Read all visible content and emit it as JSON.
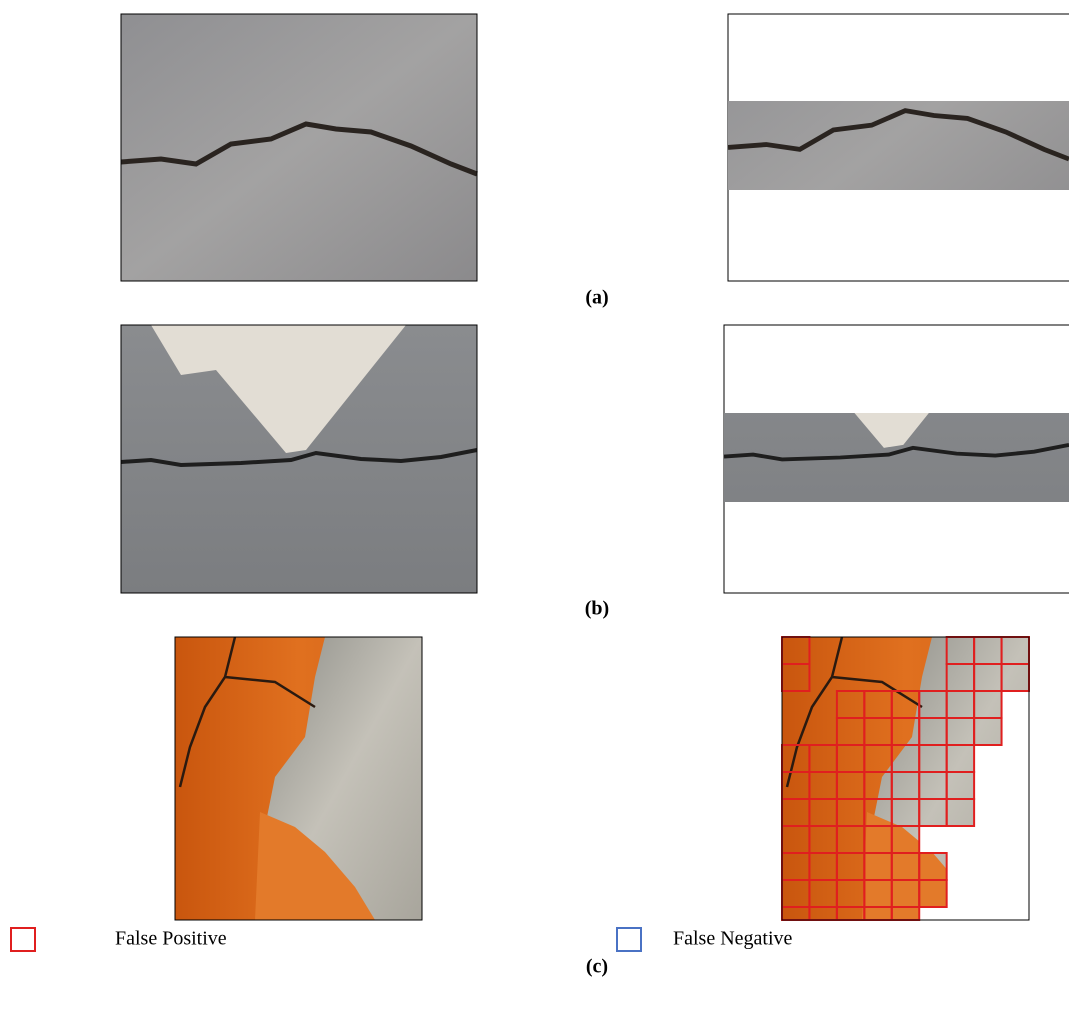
{
  "panels": [
    {
      "label": "(a)"
    },
    {
      "label": "(b)"
    },
    {
      "label": "(c)"
    }
  ],
  "legend": [
    {
      "label": "False Positive",
      "color": "#e01f1f"
    },
    {
      "label": "False Negative",
      "color": "#4a72c4"
    }
  ]
}
